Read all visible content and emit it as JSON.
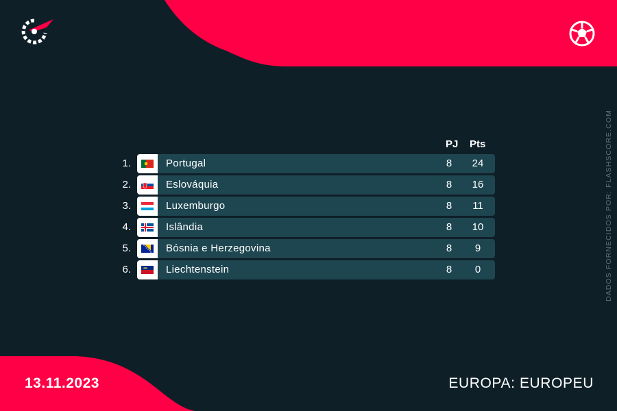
{
  "header": {
    "logo_icon": "flashscore-logo-icon",
    "sport_icon": "soccer-ball-icon",
    "accent_color": "#ff0046"
  },
  "source_text": "DADOS FORNECIDOS POR: FLASHSCORE.COM",
  "table": {
    "columns": {
      "played": "PJ",
      "points": "Pts"
    },
    "rows": [
      {
        "rank": "1.",
        "team": "Portugal",
        "flag": "portugal",
        "played": "8",
        "points": "24"
      },
      {
        "rank": "2.",
        "team": "Eslováquia",
        "flag": "slovakia",
        "played": "8",
        "points": "16"
      },
      {
        "rank": "3.",
        "team": "Luxemburgo",
        "flag": "luxembourg",
        "played": "8",
        "points": "11"
      },
      {
        "rank": "4.",
        "team": "Islândia",
        "flag": "iceland",
        "played": "8",
        "points": "10"
      },
      {
        "rank": "5.",
        "team": "Bósnia e Herzegovina",
        "flag": "bosnia",
        "played": "8",
        "points": "9"
      },
      {
        "rank": "6.",
        "team": "Liechtenstein",
        "flag": "liechtenstein",
        "played": "8",
        "points": "0"
      }
    ]
  },
  "footer": {
    "date": "13.11.2023",
    "competition": "EUROPA: EUROPEU"
  }
}
